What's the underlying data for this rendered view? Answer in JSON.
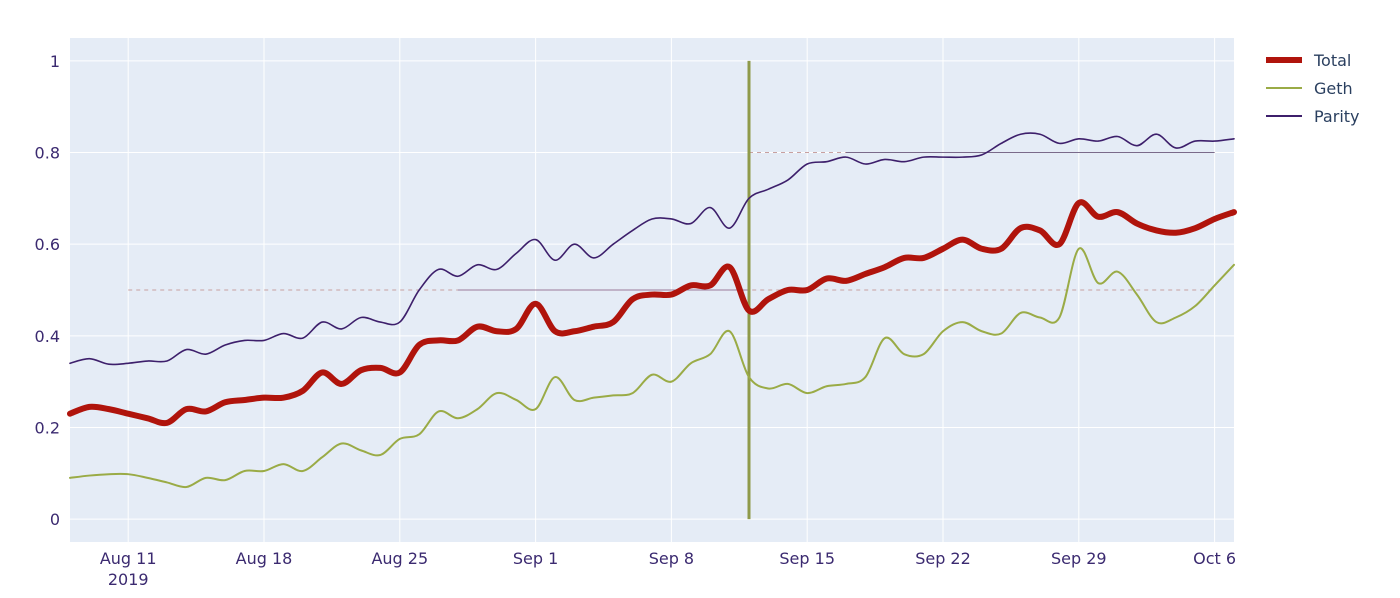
{
  "chart_data": {
    "type": "line",
    "title": "",
    "xlabel": "",
    "ylabel": "",
    "x_axis_type": "date",
    "xlim": [
      "2019-08-08",
      "2019-10-07"
    ],
    "ylim": [
      -0.05,
      1.05
    ],
    "x_ticks": [
      {
        "date": "2019-08-11",
        "label": "Aug 11",
        "sublabel": "2019"
      },
      {
        "date": "2019-08-18",
        "label": "Aug 18",
        "sublabel": ""
      },
      {
        "date": "2019-08-25",
        "label": "Aug 25",
        "sublabel": ""
      },
      {
        "date": "2019-09-01",
        "label": "Sep 1",
        "sublabel": ""
      },
      {
        "date": "2019-09-08",
        "label": "Sep 8",
        "sublabel": ""
      },
      {
        "date": "2019-09-15",
        "label": "Sep 15",
        "sublabel": ""
      },
      {
        "date": "2019-09-22",
        "label": "Sep 22",
        "sublabel": ""
      },
      {
        "date": "2019-09-29",
        "label": "Sep 29",
        "sublabel": ""
      },
      {
        "date": "2019-10-06",
        "label": "Oct 6",
        "sublabel": ""
      }
    ],
    "y_ticks": [
      {
        "value": 0,
        "label": "0"
      },
      {
        "value": 0.2,
        "label": "0.2"
      },
      {
        "value": 0.4,
        "label": "0.4"
      },
      {
        "value": 0.6,
        "label": "0.6"
      },
      {
        "value": 0.8,
        "label": "0.8"
      },
      {
        "value": 1,
        "label": "1"
      }
    ],
    "grid": true,
    "legend_position": "top-right",
    "colors": {
      "background": "#e5ecf6",
      "grid": "#ffffff",
      "Total": "#b0140c",
      "Geth": "#9aab46",
      "Parity": "#3d1f6b",
      "reference": "#c8a0a0"
    },
    "series": [
      {
        "name": "Total",
        "x": [
          "2019-08-08",
          "2019-08-09",
          "2019-08-10",
          "2019-08-11",
          "2019-08-12",
          "2019-08-13",
          "2019-08-14",
          "2019-08-15",
          "2019-08-16",
          "2019-08-17",
          "2019-08-18",
          "2019-08-19",
          "2019-08-20",
          "2019-08-21",
          "2019-08-22",
          "2019-08-23",
          "2019-08-24",
          "2019-08-25",
          "2019-08-26",
          "2019-08-27",
          "2019-08-28",
          "2019-08-29",
          "2019-08-30",
          "2019-08-31",
          "2019-09-01",
          "2019-09-02",
          "2019-09-03",
          "2019-09-04",
          "2019-09-05",
          "2019-09-06",
          "2019-09-07",
          "2019-09-08",
          "2019-09-09",
          "2019-09-10",
          "2019-09-11",
          "2019-09-12",
          "2019-09-13",
          "2019-09-14",
          "2019-09-15",
          "2019-09-16",
          "2019-09-17",
          "2019-09-18",
          "2019-09-19",
          "2019-09-20",
          "2019-09-21",
          "2019-09-22",
          "2019-09-23",
          "2019-09-24",
          "2019-09-25",
          "2019-09-26",
          "2019-09-27",
          "2019-09-28",
          "2019-09-29",
          "2019-09-30",
          "2019-10-01",
          "2019-10-02",
          "2019-10-03",
          "2019-10-04",
          "2019-10-05",
          "2019-10-06",
          "2019-10-07"
        ],
        "values": [
          0.23,
          0.245,
          0.24,
          0.23,
          0.22,
          0.21,
          0.24,
          0.235,
          0.255,
          0.26,
          0.265,
          0.265,
          0.28,
          0.32,
          0.295,
          0.325,
          0.33,
          0.32,
          0.38,
          0.39,
          0.39,
          0.42,
          0.41,
          0.415,
          0.47,
          0.41,
          0.41,
          0.42,
          0.43,
          0.48,
          0.49,
          0.49,
          0.51,
          0.51,
          0.55,
          0.455,
          0.48,
          0.5,
          0.5,
          0.525,
          0.52,
          0.535,
          0.55,
          0.57,
          0.57,
          0.59,
          0.61,
          0.59,
          0.59,
          0.635,
          0.63,
          0.6,
          0.69,
          0.66,
          0.67,
          0.645,
          0.63,
          0.625,
          0.635,
          0.655,
          0.67
        ]
      },
      {
        "name": "Geth",
        "x": [
          "2019-08-08",
          "2019-08-09",
          "2019-08-10",
          "2019-08-11",
          "2019-08-12",
          "2019-08-13",
          "2019-08-14",
          "2019-08-15",
          "2019-08-16",
          "2019-08-17",
          "2019-08-18",
          "2019-08-19",
          "2019-08-20",
          "2019-08-21",
          "2019-08-22",
          "2019-08-23",
          "2019-08-24",
          "2019-08-25",
          "2019-08-26",
          "2019-08-27",
          "2019-08-28",
          "2019-08-29",
          "2019-08-30",
          "2019-08-31",
          "2019-09-01",
          "2019-09-02",
          "2019-09-03",
          "2019-09-04",
          "2019-09-05",
          "2019-09-06",
          "2019-09-07",
          "2019-09-08",
          "2019-09-09",
          "2019-09-10",
          "2019-09-11",
          "2019-09-12",
          "2019-09-13",
          "2019-09-14",
          "2019-09-15",
          "2019-09-16",
          "2019-09-17",
          "2019-09-18",
          "2019-09-19",
          "2019-09-20",
          "2019-09-21",
          "2019-09-22",
          "2019-09-23",
          "2019-09-24",
          "2019-09-25",
          "2019-09-26",
          "2019-09-27",
          "2019-09-28",
          "2019-09-29",
          "2019-09-30",
          "2019-10-01",
          "2019-10-02",
          "2019-10-03",
          "2019-10-04",
          "2019-10-05",
          "2019-10-06",
          "2019-10-07"
        ],
        "values": [
          0.09,
          0.095,
          0.098,
          0.098,
          0.09,
          0.08,
          0.07,
          0.09,
          0.085,
          0.105,
          0.105,
          0.12,
          0.105,
          0.135,
          0.165,
          0.15,
          0.14,
          0.175,
          0.185,
          0.235,
          0.22,
          0.24,
          0.275,
          0.26,
          0.24,
          0.31,
          0.26,
          0.265,
          0.27,
          0.275,
          0.315,
          0.3,
          0.34,
          0.36,
          0.41,
          0.31,
          0.285,
          0.295,
          0.275,
          0.29,
          0.295,
          0.31,
          0.395,
          0.36,
          0.36,
          0.41,
          0.43,
          0.41,
          0.405,
          0.45,
          0.44,
          0.44,
          0.59,
          0.515,
          0.54,
          0.49,
          0.43,
          0.44,
          0.465,
          0.51,
          0.555
        ]
      },
      {
        "name": "Parity",
        "x": [
          "2019-08-08",
          "2019-08-09",
          "2019-08-10",
          "2019-08-11",
          "2019-08-12",
          "2019-08-13",
          "2019-08-14",
          "2019-08-15",
          "2019-08-16",
          "2019-08-17",
          "2019-08-18",
          "2019-08-19",
          "2019-08-20",
          "2019-08-21",
          "2019-08-22",
          "2019-08-23",
          "2019-08-24",
          "2019-08-25",
          "2019-08-26",
          "2019-08-27",
          "2019-08-28",
          "2019-08-29",
          "2019-08-30",
          "2019-08-31",
          "2019-09-01",
          "2019-09-02",
          "2019-09-03",
          "2019-09-04",
          "2019-09-05",
          "2019-09-06",
          "2019-09-07",
          "2019-09-08",
          "2019-09-09",
          "2019-09-10",
          "2019-09-11",
          "2019-09-12",
          "2019-09-13",
          "2019-09-14",
          "2019-09-15",
          "2019-09-16",
          "2019-09-17",
          "2019-09-18",
          "2019-09-19",
          "2019-09-20",
          "2019-09-21",
          "2019-09-22",
          "2019-09-23",
          "2019-09-24",
          "2019-09-25",
          "2019-09-26",
          "2019-09-27",
          "2019-09-28",
          "2019-09-29",
          "2019-09-30",
          "2019-10-01",
          "2019-10-02",
          "2019-10-03",
          "2019-10-04",
          "2019-10-05",
          "2019-10-06",
          "2019-10-07"
        ],
        "values": [
          0.34,
          0.35,
          0.338,
          0.34,
          0.345,
          0.345,
          0.37,
          0.36,
          0.38,
          0.39,
          0.39,
          0.405,
          0.395,
          0.43,
          0.415,
          0.44,
          0.43,
          0.43,
          0.5,
          0.545,
          0.53,
          0.555,
          0.545,
          0.58,
          0.61,
          0.565,
          0.6,
          0.57,
          0.6,
          0.63,
          0.655,
          0.655,
          0.645,
          0.68,
          0.635,
          0.7,
          0.72,
          0.74,
          0.775,
          0.78,
          0.79,
          0.775,
          0.785,
          0.78,
          0.79,
          0.79,
          0.79,
          0.795,
          0.82,
          0.84,
          0.84,
          0.82,
          0.83,
          0.825,
          0.835,
          0.815,
          0.84,
          0.81,
          0.825,
          0.825,
          0.83
        ]
      }
    ],
    "reference_lines": [
      {
        "type": "horizontal",
        "y": 0.5,
        "x_start": "2019-08-11",
        "x_end": "2019-10-06",
        "style": "dashed",
        "color": "#c8a0a0"
      },
      {
        "type": "horizontal",
        "y": 0.5,
        "x_start": "2019-08-28",
        "x_end": "2019-09-12",
        "style": "solid",
        "color": "#9a7a9a"
      },
      {
        "type": "horizontal",
        "y": 0.8,
        "x_start": "2019-09-12",
        "x_end": "2019-10-06",
        "style": "dashed",
        "color": "#c8a0a0"
      },
      {
        "type": "horizontal",
        "y": 0.8,
        "x_start": "2019-09-17",
        "x_end": "2019-10-06",
        "style": "solid",
        "color": "#7a6a8a"
      },
      {
        "type": "vertical",
        "x": "2019-09-12",
        "y_start": 0,
        "y_end": 1,
        "style": "solid",
        "color": "#8f9a4a"
      }
    ]
  }
}
